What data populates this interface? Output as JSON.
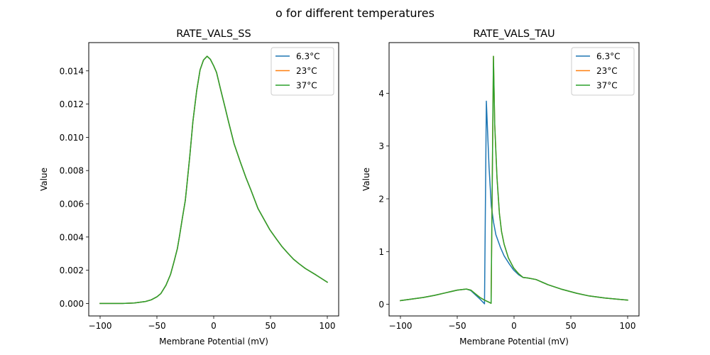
{
  "figure": {
    "suptitle": "o for different temperatures"
  },
  "chart_data": [
    {
      "type": "line",
      "title": "RATE_VALS_SS",
      "xlabel": "Membrane Potential (mV)",
      "ylabel": "Value",
      "xlim": [
        -110,
        110
      ],
      "ylim": [
        -0.00075,
        0.0157
      ],
      "xticks": [
        -100,
        -50,
        0,
        50,
        100
      ],
      "xtick_labels": [
        "−100",
        "−50",
        "0",
        "50",
        "100"
      ],
      "yticks": [
        0.0,
        0.002,
        0.004,
        0.006,
        0.008,
        0.01,
        0.012,
        0.014
      ],
      "ytick_labels": [
        "0.000",
        "0.002",
        "0.004",
        "0.006",
        "0.008",
        "0.010",
        "0.012",
        "0.014"
      ],
      "grid": false,
      "legend_position": "top-right",
      "series": [
        {
          "name": "6.3°C",
          "color": "#1f77b4",
          "x": [
            -100,
            -80,
            -70,
            -60,
            -55,
            -50,
            -46.5,
            -42,
            -38,
            -35,
            -32,
            -30,
            -27.7,
            -25,
            -23.5,
            -21,
            -18.3,
            -15,
            -12,
            -9,
            -5.8,
            -3,
            0,
            2.5,
            6,
            10,
            13,
            18,
            23.3,
            28.5,
            32.7,
            39,
            44,
            49.4,
            55,
            59.8,
            65,
            70.2,
            75,
            80.6,
            90,
            100
          ],
          "y": [
            0.0,
            0.0,
            3e-05,
            0.00012,
            0.00022,
            0.0004,
            0.0006,
            0.0011,
            0.00175,
            0.0025,
            0.0033,
            0.0041,
            0.0051,
            0.0062,
            0.0072,
            0.0089,
            0.01095,
            0.0128,
            0.01406,
            0.01465,
            0.01488,
            0.0147,
            0.0143,
            0.0139,
            0.0129,
            0.0118,
            0.01095,
            0.0096,
            0.00854,
            0.00755,
            0.00684,
            0.00571,
            0.0051,
            0.00444,
            0.0039,
            0.00345,
            0.00305,
            0.00267,
            0.0024,
            0.00211,
            0.00172,
            0.00128
          ]
        },
        {
          "name": "23°C",
          "color": "#ff7f0e",
          "x": [
            -100,
            -80,
            -70,
            -60,
            -55,
            -50,
            -46.5,
            -42,
            -38,
            -35,
            -32,
            -30,
            -27.7,
            -25,
            -23.5,
            -21,
            -18.3,
            -15,
            -12,
            -9,
            -5.8,
            -3,
            0,
            2.5,
            6,
            10,
            13,
            18,
            23.3,
            28.5,
            32.7,
            39,
            44,
            49.4,
            55,
            59.8,
            65,
            70.2,
            75,
            80.6,
            90,
            100
          ],
          "y": [
            0.0,
            0.0,
            3e-05,
            0.00012,
            0.00022,
            0.0004,
            0.0006,
            0.0011,
            0.00175,
            0.0025,
            0.0033,
            0.0041,
            0.0051,
            0.0062,
            0.0072,
            0.0089,
            0.01095,
            0.0128,
            0.01406,
            0.01465,
            0.01488,
            0.0147,
            0.0143,
            0.0139,
            0.0129,
            0.0118,
            0.01095,
            0.0096,
            0.00854,
            0.00755,
            0.00684,
            0.00571,
            0.0051,
            0.00444,
            0.0039,
            0.00345,
            0.00305,
            0.00267,
            0.0024,
            0.00211,
            0.00172,
            0.00128
          ]
        },
        {
          "name": "37°C",
          "color": "#2ca02c",
          "x": [
            -100,
            -80,
            -70,
            -60,
            -55,
            -50,
            -46.5,
            -42,
            -38,
            -35,
            -32,
            -30,
            -27.7,
            -25,
            -23.5,
            -21,
            -18.3,
            -15,
            -12,
            -9,
            -5.8,
            -3,
            0,
            2.5,
            6,
            10,
            13,
            18,
            23.3,
            28.5,
            32.7,
            39,
            44,
            49.4,
            55,
            59.8,
            65,
            70.2,
            75,
            80.6,
            90,
            100
          ],
          "y": [
            0.0,
            0.0,
            3e-05,
            0.00012,
            0.00022,
            0.0004,
            0.0006,
            0.0011,
            0.00175,
            0.0025,
            0.0033,
            0.0041,
            0.0051,
            0.0062,
            0.0072,
            0.0089,
            0.01095,
            0.0128,
            0.01406,
            0.01465,
            0.01488,
            0.0147,
            0.0143,
            0.0139,
            0.0129,
            0.0118,
            0.01095,
            0.0096,
            0.00854,
            0.00755,
            0.00684,
            0.00571,
            0.0051,
            0.00444,
            0.0039,
            0.00345,
            0.00305,
            0.00267,
            0.0024,
            0.00211,
            0.00172,
            0.00128
          ]
        }
      ]
    },
    {
      "type": "line",
      "title": "RATE_VALS_TAU",
      "xlabel": "Membrane Potential (mV)",
      "ylabel": "Value",
      "xlim": [
        -110,
        110
      ],
      "ylim": [
        -0.22,
        4.96
      ],
      "xticks": [
        -100,
        -50,
        0,
        50,
        100
      ],
      "xtick_labels": [
        "−100",
        "−50",
        "0",
        "50",
        "100"
      ],
      "yticks": [
        0,
        1,
        2,
        3,
        4
      ],
      "ytick_labels": [
        "0",
        "1",
        "2",
        "3",
        "4"
      ],
      "grid": false,
      "legend_position": "top-right",
      "series": [
        {
          "name": "6.3°C",
          "color": "#1f77b4",
          "x": [
            -100,
            -80,
            -70,
            -60,
            -50,
            -42,
            -38,
            -34,
            -30,
            -26,
            -24.4,
            -22,
            -20,
            -18,
            -16,
            -12,
            -8.75,
            -4,
            -0.4,
            4,
            7.9,
            12,
            19.4,
            30,
            41.3,
            55,
            66,
            80,
            90,
            100
          ],
          "y": [
            0.07,
            0.13,
            0.17,
            0.22,
            0.27,
            0.29,
            0.26,
            0.18,
            0.1,
            0.01,
            3.85,
            2.6,
            1.86,
            1.55,
            1.32,
            1.08,
            0.92,
            0.76,
            0.65,
            0.56,
            0.51,
            0.5,
            0.47,
            0.37,
            0.29,
            0.21,
            0.16,
            0.12,
            0.1,
            0.08
          ]
        },
        {
          "name": "23°C",
          "color": "#ff7f0e",
          "x": [
            -100,
            -80,
            -70,
            -60,
            -50,
            -42,
            -38,
            -34,
            -30,
            -26,
            -22,
            -20.2,
            -18.1,
            -17,
            -15,
            -12.9,
            -11,
            -8.75,
            -5,
            -0.4,
            4,
            7.9,
            12,
            19.4,
            30,
            41.3,
            55,
            66,
            80,
            90,
            100
          ],
          "y": [
            0.07,
            0.13,
            0.17,
            0.22,
            0.27,
            0.29,
            0.27,
            0.2,
            0.13,
            0.08,
            0.04,
            0.02,
            4.7,
            3.4,
            2.4,
            1.72,
            1.38,
            1.14,
            0.88,
            0.69,
            0.58,
            0.51,
            0.5,
            0.47,
            0.37,
            0.29,
            0.21,
            0.16,
            0.12,
            0.1,
            0.08
          ]
        },
        {
          "name": "37°C",
          "color": "#2ca02c",
          "x": [
            -100,
            -80,
            -70,
            -60,
            -50,
            -42,
            -38,
            -34,
            -30,
            -26,
            -22,
            -20.2,
            -18.1,
            -17,
            -15,
            -12.9,
            -11,
            -8.75,
            -5,
            -0.4,
            4,
            7.9,
            12,
            19.4,
            30,
            41.3,
            55,
            66,
            80,
            90,
            100
          ],
          "y": [
            0.07,
            0.13,
            0.17,
            0.22,
            0.27,
            0.29,
            0.27,
            0.2,
            0.13,
            0.08,
            0.04,
            0.02,
            4.7,
            3.4,
            2.4,
            1.72,
            1.38,
            1.14,
            0.88,
            0.69,
            0.58,
            0.51,
            0.5,
            0.47,
            0.37,
            0.29,
            0.21,
            0.16,
            0.12,
            0.1,
            0.08
          ]
        }
      ]
    }
  ]
}
